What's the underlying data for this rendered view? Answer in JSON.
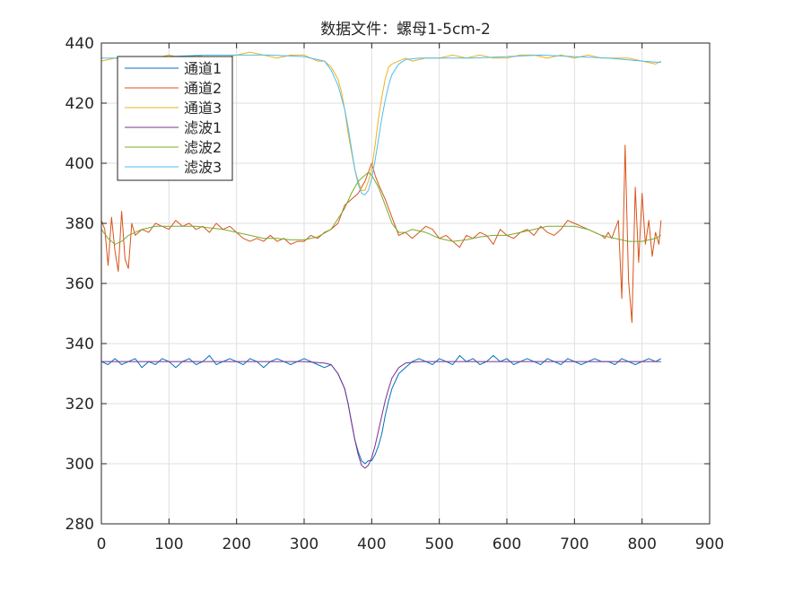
{
  "chart_data": {
    "type": "line",
    "title": "数据文件：螺母1-5cm-2",
    "xlabel": "",
    "ylabel": "",
    "xlim": [
      0,
      900
    ],
    "ylim": [
      280,
      440
    ],
    "xticks": [
      0,
      100,
      200,
      300,
      400,
      500,
      600,
      700,
      800,
      900
    ],
    "yticks": [
      280,
      300,
      320,
      340,
      360,
      380,
      400,
      420,
      440
    ],
    "grid": true,
    "legend_position": "top-left",
    "series": [
      {
        "name": "通道1",
        "color": "#0072BD",
        "x": [
          0,
          10,
          20,
          30,
          40,
          50,
          60,
          70,
          80,
          90,
          100,
          110,
          120,
          130,
          140,
          150,
          160,
          170,
          180,
          190,
          200,
          210,
          220,
          230,
          240,
          250,
          260,
          270,
          280,
          290,
          300,
          310,
          320,
          330,
          340,
          350,
          360,
          365,
          370,
          375,
          380,
          385,
          390,
          395,
          400,
          405,
          410,
          415,
          420,
          425,
          430,
          440,
          450,
          460,
          470,
          480,
          490,
          500,
          510,
          520,
          530,
          540,
          550,
          560,
          570,
          580,
          590,
          600,
          610,
          620,
          630,
          640,
          650,
          660,
          670,
          680,
          690,
          700,
          710,
          720,
          730,
          740,
          750,
          760,
          770,
          780,
          790,
          800,
          810,
          820,
          828
        ],
        "y": [
          334,
          333,
          335,
          333,
          334,
          335,
          332,
          334,
          333,
          335,
          334,
          332,
          334,
          335,
          333,
          334,
          336,
          333,
          334,
          335,
          334,
          333,
          335,
          334,
          332,
          334,
          335,
          334,
          333,
          334,
          335,
          334,
          333,
          332,
          333,
          330,
          325,
          320,
          314,
          308,
          304,
          301,
          300,
          301,
          301,
          303,
          306,
          310,
          316,
          321,
          325,
          330,
          332,
          334,
          335,
          334,
          333,
          335,
          334,
          333,
          336,
          334,
          335,
          333,
          334,
          336,
          334,
          335,
          333,
          334,
          335,
          334,
          333,
          335,
          334,
          333,
          335,
          334,
          333,
          334,
          335,
          334,
          334,
          333,
          335,
          334,
          333,
          334,
          335,
          334,
          335
        ]
      },
      {
        "name": "通道2",
        "color": "#D95319",
        "x": [
          0,
          5,
          10,
          15,
          20,
          25,
          30,
          35,
          40,
          45,
          50,
          60,
          70,
          80,
          90,
          100,
          110,
          120,
          130,
          140,
          150,
          160,
          170,
          180,
          190,
          200,
          210,
          220,
          230,
          240,
          250,
          260,
          270,
          280,
          290,
          300,
          310,
          320,
          330,
          340,
          350,
          360,
          370,
          380,
          390,
          395,
          400,
          405,
          410,
          420,
          430,
          440,
          450,
          460,
          470,
          480,
          490,
          500,
          510,
          520,
          530,
          540,
          550,
          560,
          570,
          580,
          590,
          600,
          610,
          620,
          630,
          640,
          650,
          660,
          670,
          680,
          690,
          700,
          710,
          720,
          730,
          740,
          745,
          750,
          755,
          760,
          765,
          770,
          775,
          780,
          785,
          790,
          795,
          800,
          805,
          810,
          815,
          820,
          825,
          828
        ],
        "y": [
          381,
          378,
          366,
          382,
          371,
          364,
          384,
          368,
          365,
          380,
          376,
          378,
          377,
          380,
          379,
          378,
          381,
          379,
          380,
          378,
          379,
          377,
          380,
          378,
          379,
          377,
          375,
          374,
          375,
          374,
          376,
          374,
          375,
          373,
          374,
          374,
          376,
          375,
          377,
          378,
          380,
          386,
          388,
          390,
          394,
          397,
          400,
          396,
          393,
          388,
          382,
          376,
          377,
          375,
          377,
          379,
          378,
          375,
          376,
          374,
          372,
          376,
          375,
          377,
          376,
          373,
          378,
          376,
          375,
          377,
          378,
          376,
          379,
          377,
          376,
          378,
          381,
          380,
          379,
          378,
          377,
          376,
          375,
          377,
          375,
          378,
          381,
          355,
          406,
          361,
          347,
          392,
          367,
          390,
          373,
          381,
          369,
          377,
          373,
          381
        ]
      },
      {
        "name": "通道3",
        "color": "#EDB120",
        "x": [
          0,
          20,
          40,
          60,
          80,
          100,
          120,
          140,
          160,
          180,
          200,
          220,
          240,
          260,
          280,
          300,
          310,
          320,
          330,
          340,
          350,
          355,
          360,
          365,
          370,
          375,
          380,
          385,
          390,
          395,
          400,
          405,
          410,
          415,
          420,
          425,
          430,
          440,
          450,
          460,
          480,
          500,
          520,
          540,
          560,
          580,
          600,
          620,
          640,
          660,
          680,
          700,
          720,
          740,
          760,
          780,
          800,
          820,
          828
        ],
        "y": [
          434,
          435,
          434,
          435,
          435,
          436,
          435,
          436,
          435,
          435,
          436,
          437,
          436,
          435,
          436,
          436,
          435,
          434,
          434,
          432,
          428,
          424,
          418,
          410,
          404,
          398,
          394,
          391,
          391,
          394,
          398,
          406,
          415,
          422,
          428,
          432,
          433,
          434,
          435,
          434,
          435,
          435,
          436,
          435,
          436,
          435,
          435,
          436,
          436,
          435,
          436,
          435,
          436,
          435,
          435,
          435,
          434,
          433,
          434
        ]
      },
      {
        "name": "滤波1",
        "color": "#7E2F8E",
        "x": [
          0,
          50,
          100,
          150,
          200,
          250,
          300,
          330,
          340,
          350,
          360,
          365,
          370,
          375,
          380,
          385,
          390,
          395,
          400,
          405,
          410,
          415,
          420,
          425,
          430,
          440,
          450,
          470,
          500,
          550,
          600,
          650,
          700,
          750,
          800,
          828
        ],
        "y": [
          334,
          334,
          334,
          334,
          334,
          334,
          334,
          333.5,
          333,
          330,
          325,
          320,
          314,
          308,
          303,
          299.5,
          298.5,
          299.5,
          302,
          306,
          311,
          316,
          321,
          325,
          328.5,
          332,
          333.5,
          334,
          334,
          334,
          334,
          334,
          334,
          334,
          334,
          334
        ]
      },
      {
        "name": "滤波2",
        "color": "#77AC30",
        "x": [
          0,
          10,
          20,
          30,
          40,
          50,
          60,
          80,
          100,
          120,
          140,
          160,
          180,
          200,
          220,
          240,
          260,
          280,
          300,
          320,
          340,
          360,
          370,
          380,
          390,
          395,
          400,
          410,
          420,
          430,
          440,
          450,
          460,
          480,
          500,
          520,
          540,
          560,
          580,
          600,
          620,
          640,
          660,
          680,
          700,
          720,
          740,
          760,
          780,
          800,
          820,
          828
        ],
        "y": [
          378,
          375,
          373,
          374,
          376,
          377,
          378,
          379,
          379,
          379,
          379,
          378.5,
          378,
          377,
          376,
          375,
          375,
          374.5,
          374.5,
          375.5,
          378,
          385,
          390,
          394,
          396,
          397,
          396,
          392,
          386,
          380,
          377,
          377,
          378,
          377,
          375,
          374,
          374.5,
          375.5,
          376,
          376,
          377,
          378,
          379,
          379,
          379,
          378,
          376,
          375,
          374,
          374,
          375,
          376
        ]
      },
      {
        "name": "滤波3",
        "color": "#4DBEEE",
        "x": [
          0,
          50,
          100,
          150,
          200,
          250,
          300,
          330,
          340,
          350,
          360,
          365,
          370,
          375,
          380,
          385,
          390,
          395,
          400,
          405,
          410,
          415,
          420,
          425,
          430,
          440,
          450,
          470,
          500,
          550,
          600,
          650,
          700,
          750,
          800,
          828
        ],
        "y": [
          435,
          435,
          435.5,
          436,
          436,
          436,
          435.5,
          434,
          431,
          426,
          418,
          412,
          405,
          398,
          393,
          390,
          389.5,
          391,
          395,
          401,
          408,
          415,
          421,
          426,
          429.5,
          433,
          434.5,
          435,
          435,
          435,
          435.5,
          436,
          435.5,
          435,
          434,
          433.5
        ]
      }
    ]
  }
}
